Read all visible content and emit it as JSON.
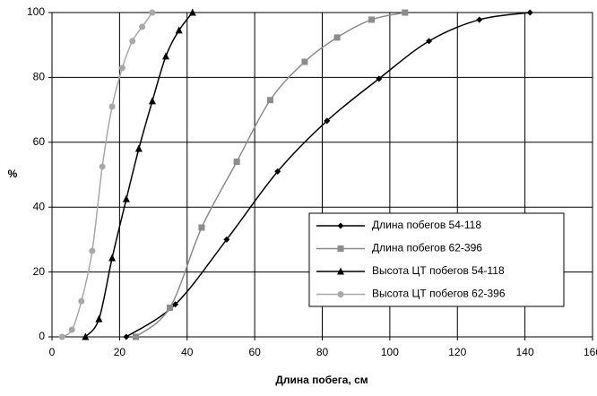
{
  "chart_data": {
    "type": "line",
    "xlabel": "Длина побега, см",
    "ylabel": "%",
    "xlim": [
      0,
      160
    ],
    "xticks": [
      0,
      20,
      40,
      60,
      80,
      100,
      120,
      140,
      160
    ],
    "ylim": [
      0,
      100
    ],
    "yticks": [
      0,
      20,
      40,
      60,
      80,
      100
    ],
    "grid": true,
    "legend": "lower right",
    "series": [
      {
        "name": "Длина побегов 54-118",
        "color": "#000000",
        "marker": "diamond",
        "x": [
          22,
          36.5,
          51.7,
          66.8,
          81.4,
          96.8,
          111.6,
          126.5,
          141.5
        ],
        "values": [
          0,
          10,
          30,
          51,
          66.6,
          79.6,
          91.2,
          97.8,
          100
        ]
      },
      {
        "name": "Длина побегов 62-396",
        "color": "#8c8c8c",
        "marker": "square",
        "x": [
          24.8,
          34.9,
          44.3,
          54.7,
          64.6,
          74.8,
          84.4,
          94.6,
          104.5
        ],
        "values": [
          0,
          9,
          33.7,
          54,
          73,
          84.8,
          92.3,
          97.8,
          100
        ]
      },
      {
        "name": "Высота ЦТ побегов 54-118",
        "color": "#000000",
        "marker": "triangle",
        "x": [
          9.9,
          13.9,
          17.8,
          22,
          25.7,
          29.7,
          33.7,
          37.6,
          41.6
        ],
        "values": [
          0,
          5.5,
          24.3,
          42.5,
          58,
          72.7,
          86.5,
          94.5,
          100
        ]
      },
      {
        "name": "Высота ЦТ побегов 62-396",
        "color": "#a8a8a8",
        "marker": "circle",
        "x": [
          3,
          5.9,
          8.7,
          11.9,
          14.9,
          17.8,
          20.8,
          23.8,
          26.7,
          29.7
        ],
        "values": [
          0,
          2.2,
          11,
          26.5,
          52.5,
          71,
          82.9,
          91.2,
          95.6,
          100
        ]
      }
    ]
  }
}
